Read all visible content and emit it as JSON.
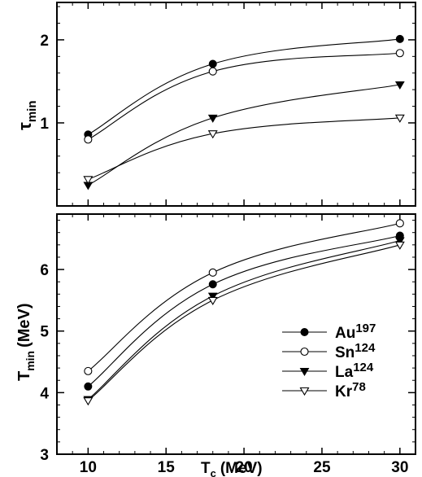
{
  "chart_data": [
    {
      "type": "line",
      "ylabel_main": "τ",
      "ylabel_sub": "min",
      "x": [
        10,
        18,
        30
      ],
      "xlim": [
        8,
        31
      ],
      "ylim": [
        0,
        2.45
      ],
      "yticks": [
        1,
        2
      ],
      "xticks": [
        10,
        15,
        20,
        25,
        30
      ],
      "series": [
        {
          "name": "Au197",
          "marker": "filled-circle",
          "values": [
            0.86,
            1.71,
            2.01
          ]
        },
        {
          "name": "Sn124",
          "marker": "open-circle",
          "values": [
            0.8,
            1.62,
            1.84
          ]
        },
        {
          "name": "La124",
          "marker": "filled-triangle-down",
          "values": [
            0.25,
            1.06,
            1.46
          ]
        },
        {
          "name": "Kr78",
          "marker": "open-triangle-down",
          "values": [
            0.32,
            0.87,
            1.06
          ]
        }
      ]
    },
    {
      "type": "line",
      "ylabel_main": "T",
      "ylabel_sub": "min",
      "ylabel_unit": "(MeV)",
      "xlabel_main": "T",
      "xlabel_sub": "c",
      "xlabel_unit": "(MeV)",
      "x": [
        10,
        18,
        30
      ],
      "xlim": [
        8,
        31
      ],
      "ylim": [
        3,
        6.9
      ],
      "yticks": [
        3,
        4,
        5,
        6
      ],
      "xticks": [
        10,
        15,
        20,
        25,
        30
      ],
      "legend_position": "lower-right",
      "series": [
        {
          "name": "Au197",
          "label_base": "Au",
          "label_sup": "197",
          "marker": "filled-circle",
          "values": [
            4.1,
            5.76,
            6.55
          ]
        },
        {
          "name": "Sn124",
          "label_base": "Sn",
          "label_sup": "124",
          "marker": "open-circle",
          "values": [
            4.35,
            5.95,
            6.75
          ]
        },
        {
          "name": "La124",
          "label_base": "La",
          "label_sup": "124",
          "marker": "filled-triangle-down",
          "values": [
            3.89,
            5.57,
            6.47
          ]
        },
        {
          "name": "Kr78",
          "label_base": "Kr",
          "label_sup": "78",
          "marker": "open-triangle-down",
          "values": [
            3.87,
            5.5,
            6.4
          ]
        }
      ]
    }
  ]
}
